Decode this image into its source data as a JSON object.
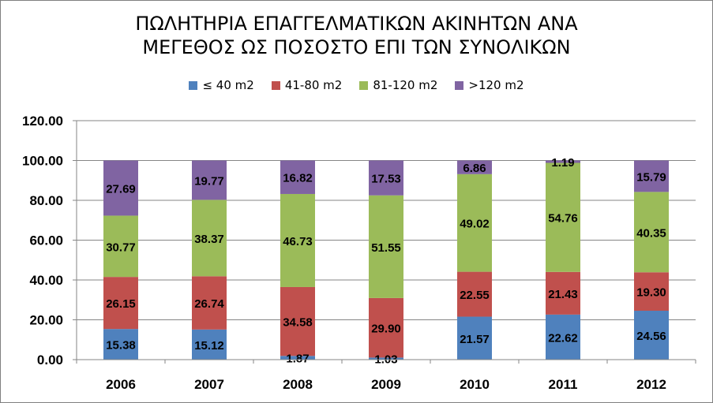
{
  "chart_data": {
    "type": "bar",
    "stacked": true,
    "title_lines": [
      "ΠΩΛΗΤΗΡΙΑ ΕΠΑΓΓΕΛΜΑΤΙΚΩΝ ΑΚΙΝΗΤΩΝ ΑΝΑ",
      "ΜΕΓΕΘΟΣ ΩΣ ΠΟΣΟΣΤΟ ΕΠΙ ΤΩΝ ΣΥΝΟΛΙΚΩΝ"
    ],
    "categories": [
      "2006",
      "2007",
      "2008",
      "2009",
      "2010",
      "2011",
      "2012"
    ],
    "series": [
      {
        "name": "≤ 40 m2",
        "color": "#4f81bd",
        "values": [
          15.38,
          15.12,
          1.87,
          1.03,
          21.57,
          22.62,
          24.56
        ],
        "labels": [
          "15.38",
          "15.12",
          "1.87",
          "1.03",
          "21.57",
          "22.62",
          "24.56"
        ]
      },
      {
        "name": "41-80 m2",
        "color": "#c0504d",
        "values": [
          26.15,
          26.74,
          34.58,
          29.9,
          22.55,
          21.43,
          19.3
        ],
        "labels": [
          "26.15",
          "26.74",
          "34.58",
          "29.90",
          "22.55",
          "21.43",
          "19.30"
        ]
      },
      {
        "name": "81-120 m2",
        "color": "#9bbb59",
        "values": [
          30.77,
          38.37,
          46.73,
          51.55,
          49.02,
          54.76,
          40.35
        ],
        "labels": [
          "30.77",
          "38.37",
          "46.73",
          "51.55",
          "49.02",
          "54.76",
          "40.35"
        ]
      },
      {
        "name": ">120 m2",
        "color": "#8064a2",
        "values": [
          27.69,
          19.77,
          16.82,
          17.53,
          6.86,
          1.19,
          15.79
        ],
        "labels": [
          "27.69",
          "19.77",
          "16.82",
          "17.53",
          "6.86",
          "1.19",
          "15.79"
        ]
      }
    ],
    "y_ticks": [
      "0.00",
      "20.00",
      "40.00",
      "60.00",
      "80.00",
      "100.00",
      "120.00"
    ],
    "ylim": [
      0,
      120
    ],
    "grid": true,
    "legend_position": "top"
  }
}
